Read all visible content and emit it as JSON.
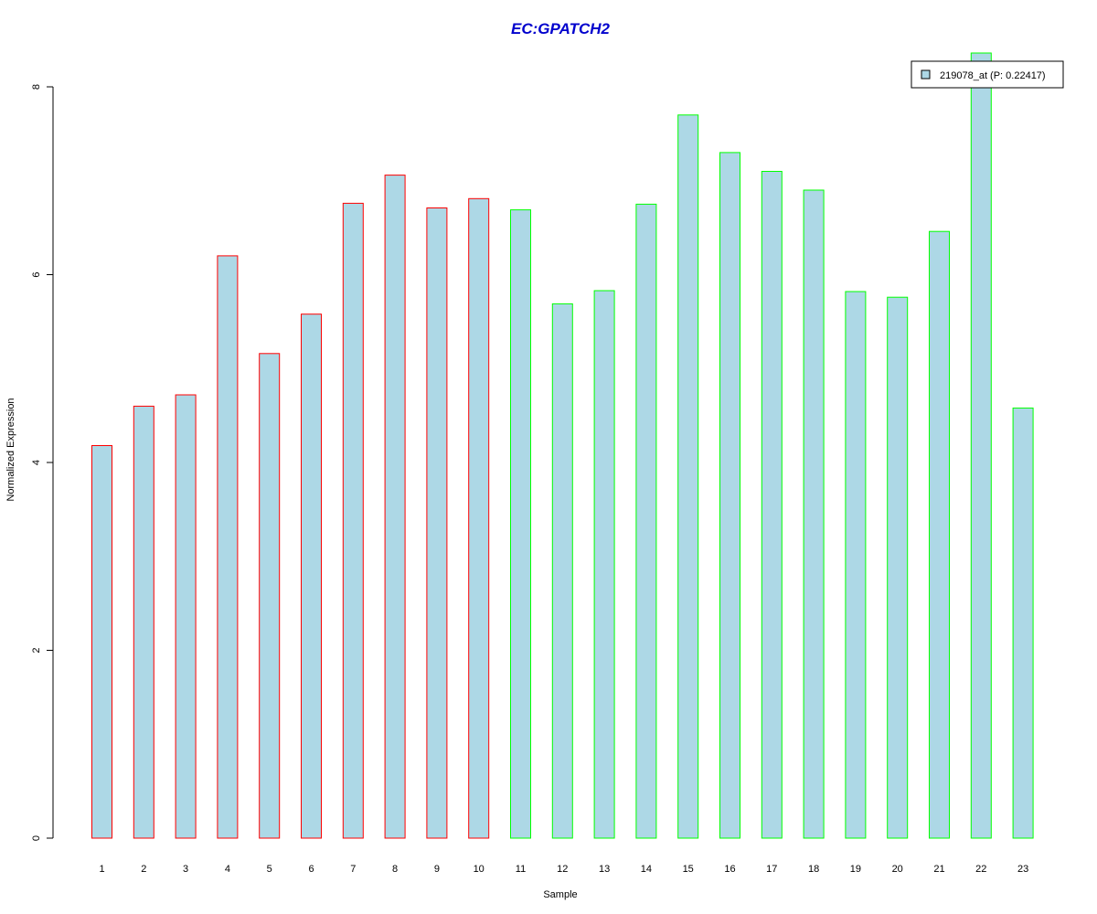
{
  "chart_data": {
    "type": "bar",
    "title": "EC:GPATCH2",
    "xlabel": "Sample",
    "ylabel": "Normalized Expression",
    "ylim": [
      0,
      8
    ],
    "yticks": [
      "0",
      "2",
      "4",
      "6",
      "8"
    ],
    "categories": [
      "1",
      "2",
      "3",
      "4",
      "5",
      "6",
      "7",
      "8",
      "9",
      "10",
      "11",
      "12",
      "13",
      "14",
      "15",
      "16",
      "17",
      "18",
      "19",
      "20",
      "21",
      "22",
      "23"
    ],
    "values": [
      4.18,
      4.6,
      4.72,
      6.2,
      5.16,
      5.58,
      6.76,
      7.06,
      6.71,
      6.81,
      6.69,
      5.69,
      5.83,
      6.75,
      7.7,
      7.3,
      7.1,
      6.9,
      5.82,
      5.76,
      6.46,
      8.36,
      4.58
    ],
    "groups": [
      "red",
      "red",
      "red",
      "red",
      "red",
      "red",
      "red",
      "red",
      "red",
      "red",
      "green",
      "green",
      "green",
      "green",
      "green",
      "green",
      "green",
      "green",
      "green",
      "green",
      "green",
      "green",
      "green"
    ],
    "legend": {
      "label": "219078_at (P: 0.22417)",
      "position": "top-right"
    },
    "grid": false,
    "colors": {
      "bar_fill": "#add8e6",
      "red": "#ff0000",
      "green": "#00ff00",
      "title": "#0000cd"
    }
  }
}
